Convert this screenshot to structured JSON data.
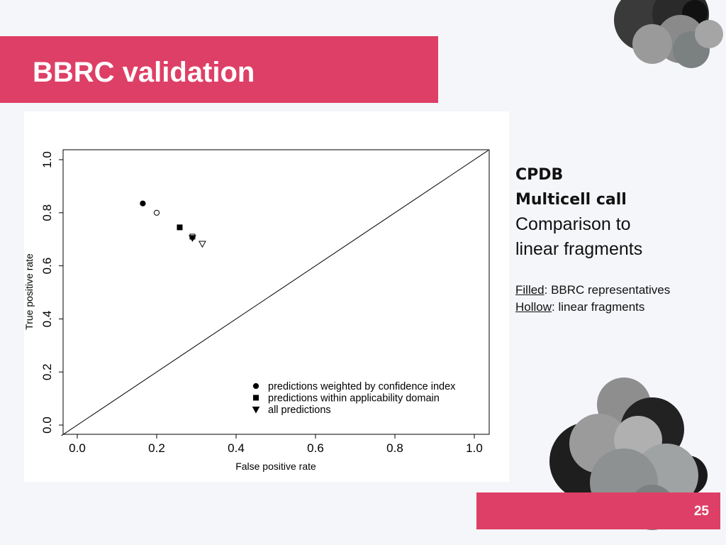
{
  "slide": {
    "title": "BBRC validation",
    "page_number": "25",
    "accent_color": "#de3f66"
  },
  "side": {
    "heading_lines": [
      "CPDB",
      "Multicell call"
    ],
    "sub_lines": [
      "Comparison to",
      "linear fragments"
    ],
    "filled_label": "Filled",
    "filled_text": ": BBRC representatives",
    "hollow_label": "Hollow",
    "hollow_text": ": linear fragments"
  },
  "decorations": [
    "molecule-top-right",
    "molecule-bottom-right"
  ],
  "chart_data": {
    "type": "scatter",
    "title": "",
    "xlabel": "False positive rate",
    "ylabel": "True positive rate",
    "xlim": [
      0,
      1
    ],
    "ylim": [
      0,
      1
    ],
    "xticks": [
      "0.0",
      "0.2",
      "0.4",
      "0.6",
      "0.8",
      "1.0"
    ],
    "yticks": [
      "0.0",
      "0.2",
      "0.4",
      "0.6",
      "0.8",
      "1.0"
    ],
    "grid": false,
    "legend_position": "bottom-right",
    "reference_line": {
      "from": [
        0,
        0
      ],
      "to": [
        1,
        1
      ]
    },
    "series": [
      {
        "name": "predictions weighted by confidence index",
        "marker": "circle",
        "points": [
          {
            "x": 0.165,
            "y": 0.835,
            "filled": true
          },
          {
            "x": 0.2,
            "y": 0.8,
            "filled": false
          }
        ]
      },
      {
        "name": "predictions within applicability domain",
        "marker": "square",
        "points": [
          {
            "x": 0.258,
            "y": 0.745,
            "filled": true
          },
          {
            "x": 0.29,
            "y": 0.71,
            "filled": false
          }
        ]
      },
      {
        "name": "all predictions",
        "marker": "triangle",
        "points": [
          {
            "x": 0.29,
            "y": 0.705,
            "filled": true
          },
          {
            "x": 0.315,
            "y": 0.683,
            "filled": false
          }
        ]
      }
    ]
  }
}
